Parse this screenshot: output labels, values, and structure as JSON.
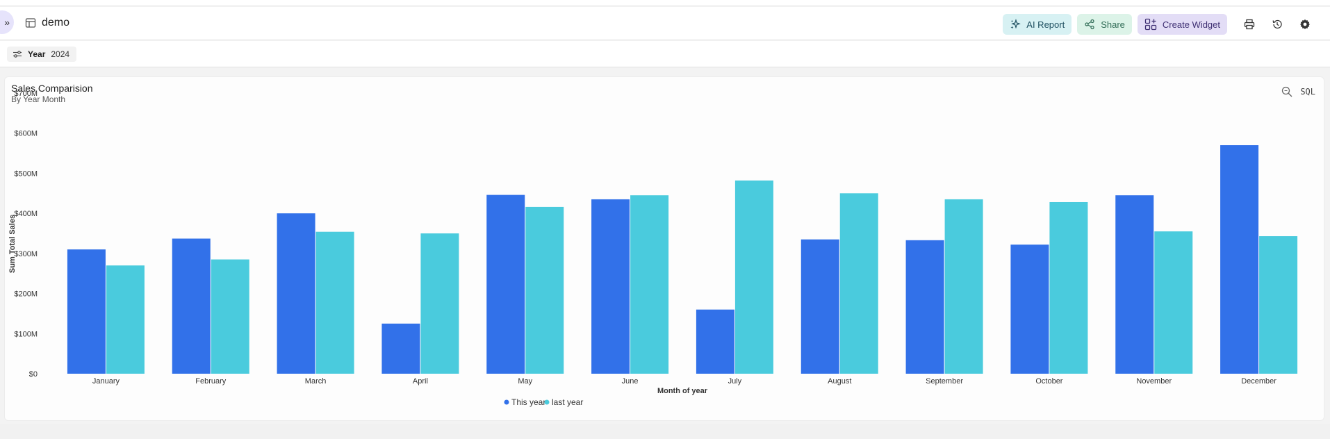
{
  "header": {
    "dashboard_name": "demo",
    "actions": {
      "ai_report": "AI Report",
      "share": "Share",
      "create_widget": "Create Widget"
    },
    "expand_glyph": "»"
  },
  "filters": [
    {
      "key": "Year",
      "value": "2024"
    }
  ],
  "widget": {
    "title": "Sales Comparision",
    "subtitle": "By Year Month",
    "sql_label": "SQL"
  },
  "colors": {
    "this_year": "#3271e9",
    "last_year": "#4acbdd"
  },
  "chart_data": {
    "type": "bar",
    "xlabel": "Month of year",
    "ylabel": "Sum Total Sales",
    "ylim": [
      0,
      700
    ],
    "yticks": [
      {
        "value": 0,
        "label": "$0"
      },
      {
        "value": 100,
        "label": "$100M"
      },
      {
        "value": 200,
        "label": "$200M"
      },
      {
        "value": 300,
        "label": "$300M"
      },
      {
        "value": 400,
        "label": "$400M"
      },
      {
        "value": 500,
        "label": "$500M"
      },
      {
        "value": 600,
        "label": "$600M"
      },
      {
        "value": 700,
        "label": "$700M"
      }
    ],
    "categories": [
      "January",
      "February",
      "March",
      "April",
      "May",
      "June",
      "July",
      "August",
      "September",
      "October",
      "November",
      "December"
    ],
    "series": [
      {
        "name": "This year",
        "color": "#3271e9",
        "values": [
          310,
          337,
          400,
          125,
          446,
          435,
          160,
          335,
          333,
          322,
          445,
          570
        ]
      },
      {
        "name": "last year",
        "color": "#4acbdd",
        "values": [
          270,
          285,
          354,
          350,
          416,
          445,
          482,
          450,
          435,
          428,
          355,
          343
        ]
      }
    ],
    "legend_position": "bottom-center",
    "grid": false
  }
}
